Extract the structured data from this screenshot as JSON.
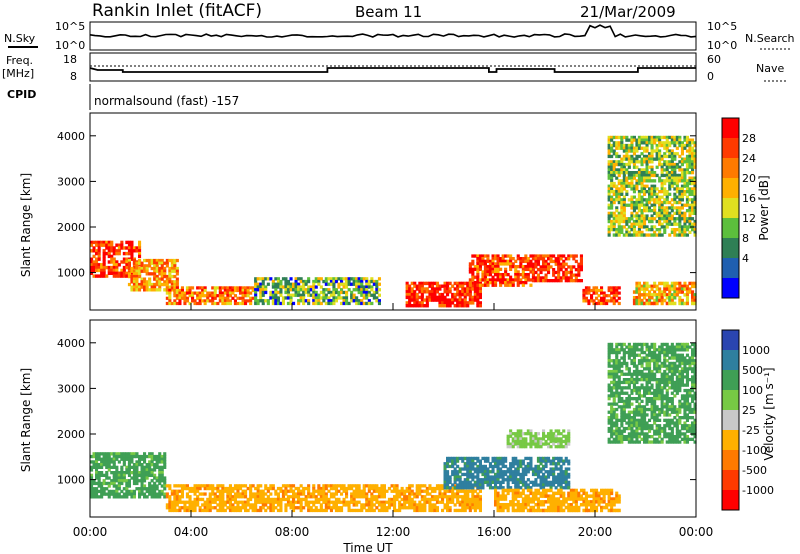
{
  "header": {
    "title": "Rankin Inlet (fitACF)",
    "beam": "Beam 11",
    "date": "21/Mar/2009"
  },
  "summary_panels": {
    "nsky_label": "N.Sky",
    "nsky_ticks": [
      "10^5",
      "10^0"
    ],
    "nsearch_label": "N.Search",
    "freq_label": "Freq.",
    "freq_unit": "[MHz]",
    "freq_ticks": [
      "18",
      "8"
    ],
    "nave_label": "Nave",
    "nave_ticks": [
      "60",
      "0"
    ],
    "cpid_label": "CPID",
    "cpid_text": "normalsound (fast) -157"
  },
  "chart_data": [
    {
      "type": "heatmap",
      "name": "power",
      "ylabel": "Slant Range [km]",
      "yticks": [
        "4000",
        "3000",
        "2000",
        "1000"
      ],
      "ylim": [
        180,
        4500
      ],
      "xlim": [
        0,
        24
      ],
      "colorbar_label": "Power [dB]",
      "colorbar_ticks": [
        "28",
        "24",
        "20",
        "16",
        "12",
        "8",
        "4"
      ],
      "colorbar_colors": [
        "#ff0000",
        "#ff3a00",
        "#ff7a00",
        "#ffb000",
        "#e0e020",
        "#5cbf3c",
        "#2f7f55",
        "#1f5fb0",
        "#0000ff"
      ],
      "regions": [
        {
          "t0": 0.0,
          "t1": 2.0,
          "r0": 900,
          "r1": 1700,
          "value": 26
        },
        {
          "t0": 1.5,
          "t1": 3.5,
          "r0": 600,
          "r1": 1300,
          "value": 20
        },
        {
          "t0": 3.0,
          "t1": 6.5,
          "r0": 300,
          "r1": 700,
          "value": 22
        },
        {
          "t0": 6.5,
          "t1": 11.5,
          "r0": 300,
          "r1": 900,
          "value": 10
        },
        {
          "t0": 12.5,
          "t1": 15.5,
          "r0": 250,
          "r1": 800,
          "value": 28
        },
        {
          "t0": 15.0,
          "t1": 17.5,
          "r0": 700,
          "r1": 1400,
          "value": 26
        },
        {
          "t0": 17.5,
          "t1": 19.5,
          "r0": 800,
          "r1": 1400,
          "value": 28
        },
        {
          "t0": 19.5,
          "t1": 21.0,
          "r0": 300,
          "r1": 700,
          "value": 26
        },
        {
          "t0": 21.5,
          "t1": 24.0,
          "r0": 300,
          "r1": 800,
          "value": 18
        },
        {
          "t0": 20.5,
          "t1": 24.0,
          "r0": 1800,
          "r1": 4000,
          "value": 12
        }
      ]
    },
    {
      "type": "heatmap",
      "name": "velocity",
      "ylabel": "Slant Range [km]",
      "yticks": [
        "4000",
        "3000",
        "2000",
        "1000"
      ],
      "ylim": [
        180,
        4500
      ],
      "xlim": [
        0,
        24
      ],
      "xticks": [
        "00:00",
        "04:00",
        "08:00",
        "12:00",
        "16:00",
        "20:00",
        "00:00"
      ],
      "xlabel": "Time UT",
      "colorbar_label": "Velocity [m s⁻¹]",
      "colorbar_ticks": [
        "1000",
        "500",
        "100",
        "25",
        "-25",
        "-100",
        "-500",
        "-1000"
      ],
      "colorbar_colors": [
        "#2a45b0",
        "#2f7f9f",
        "#3f9f55",
        "#77c944",
        "#c8c8c8",
        "#ffb000",
        "#ff7a00",
        "#ff3a00",
        "#ff0000"
      ],
      "regions": [
        {
          "t0": 0.0,
          "t1": 3.0,
          "r0": 600,
          "r1": 1600,
          "value": 100
        },
        {
          "t0": 3.0,
          "t1": 12.0,
          "r0": 300,
          "r1": 900,
          "value": -100
        },
        {
          "t0": 12.0,
          "t1": 15.5,
          "r0": 300,
          "r1": 900,
          "value": -100
        },
        {
          "t0": 14.0,
          "t1": 19.0,
          "r0": 800,
          "r1": 1500,
          "value": 500
        },
        {
          "t0": 16.0,
          "t1": 21.0,
          "r0": 300,
          "r1": 800,
          "value": -100
        },
        {
          "t0": 16.5,
          "t1": 19.0,
          "r0": 1700,
          "r1": 2100,
          "value": 25
        },
        {
          "t0": 20.5,
          "t1": 24.0,
          "r0": 1800,
          "r1": 4000,
          "value": 100
        }
      ]
    }
  ]
}
